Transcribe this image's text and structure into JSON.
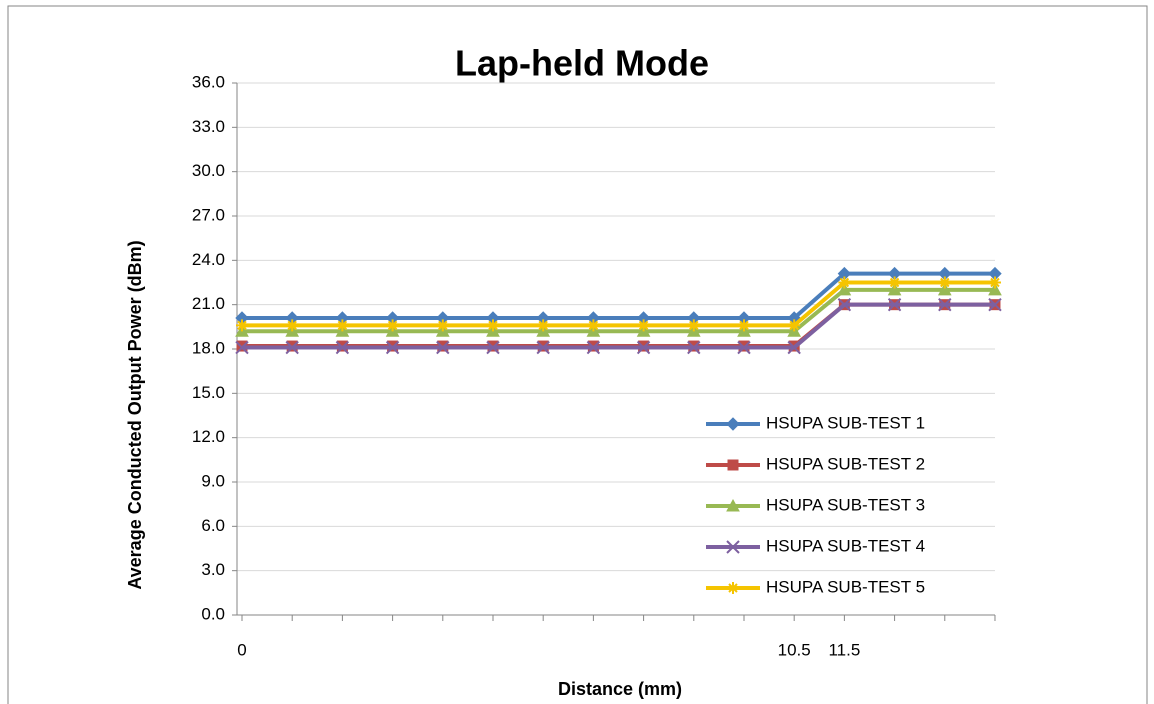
{
  "chart_data": {
    "type": "line",
    "title": "Lap-held Mode",
    "xlabel": "Distance (mm)",
    "ylabel": "Average Conducted Output  Power (dBm)",
    "categories": [
      "0",
      null,
      null,
      null,
      null,
      null,
      null,
      null,
      null,
      null,
      null,
      "10.5",
      "11.5",
      null,
      null,
      null
    ],
    "series": [
      {
        "name": "HSUPA SUB-TEST 1",
        "color": "#4a7ebb",
        "marker": "diamond",
        "values": [
          20.1,
          20.1,
          20.1,
          20.1,
          20.1,
          20.1,
          20.1,
          20.1,
          20.1,
          20.1,
          20.1,
          20.1,
          23.1,
          23.1,
          23.1,
          23.1
        ]
      },
      {
        "name": "HSUPA SUB-TEST 2",
        "color": "#be4b48",
        "marker": "square",
        "values": [
          18.2,
          18.2,
          18.2,
          18.2,
          18.2,
          18.2,
          18.2,
          18.2,
          18.2,
          18.2,
          18.2,
          18.2,
          21.0,
          21.0,
          21.0,
          21.0
        ]
      },
      {
        "name": "HSUPA SUB-TEST 3",
        "color": "#98b954",
        "marker": "triangle",
        "values": [
          19.2,
          19.2,
          19.2,
          19.2,
          19.2,
          19.2,
          19.2,
          19.2,
          19.2,
          19.2,
          19.2,
          19.2,
          22.0,
          22.0,
          22.0,
          22.0
        ]
      },
      {
        "name": "HSUPA SUB-TEST 4",
        "color": "#7d60a0",
        "marker": "x",
        "values": [
          18.1,
          18.1,
          18.1,
          18.1,
          18.1,
          18.1,
          18.1,
          18.1,
          18.1,
          18.1,
          18.1,
          18.1,
          21.0,
          21.0,
          21.0,
          21.0
        ]
      },
      {
        "name": "HSUPA SUB-TEST 5",
        "color": "#f5c400",
        "marker": "star",
        "values": [
          19.6,
          19.6,
          19.6,
          19.6,
          19.6,
          19.6,
          19.6,
          19.6,
          19.6,
          19.6,
          19.6,
          19.6,
          22.5,
          22.5,
          22.5,
          22.5
        ]
      }
    ],
    "ylim": [
      0,
      36
    ],
    "yticks": [
      {
        "value": 0,
        "label": "0.0"
      },
      {
        "value": 3,
        "label": "3.0"
      },
      {
        "value": 6,
        "label": "6.0"
      },
      {
        "value": 9,
        "label": "9.0"
      },
      {
        "value": 12,
        "label": "12.0"
      },
      {
        "value": 15,
        "label": "15.0"
      },
      {
        "value": 18,
        "label": "18.0"
      },
      {
        "value": 21,
        "label": "21.0"
      },
      {
        "value": 24,
        "label": "24.0"
      },
      {
        "value": 27,
        "label": "27.0"
      },
      {
        "value": 30,
        "label": "30.0"
      },
      {
        "value": 33,
        "label": "33.0"
      },
      {
        "value": 36,
        "label": "36.0"
      }
    ],
    "grid": true,
    "legend": "lower right"
  }
}
